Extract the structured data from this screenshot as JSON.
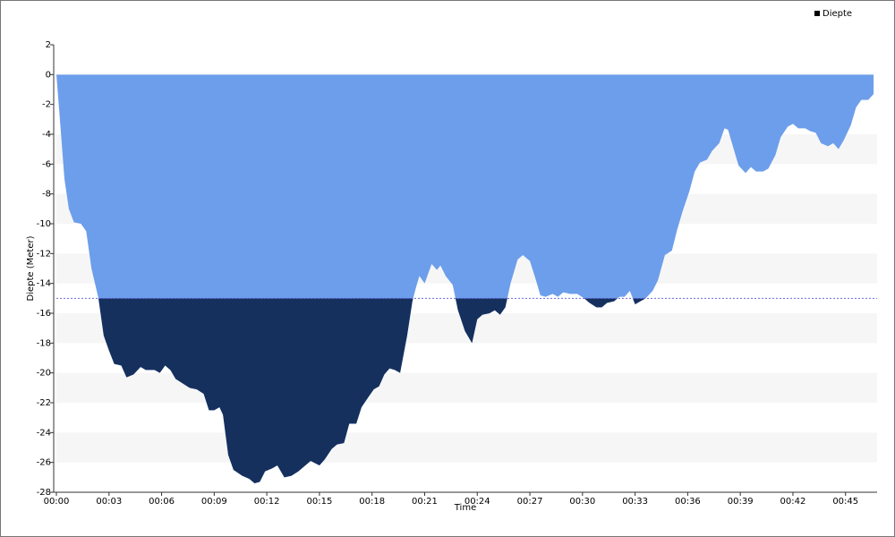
{
  "chart_data": {
    "type": "area",
    "x_label": "Time",
    "y_label": "Diepte (Meter)",
    "legend": "top-right",
    "reference_line": -15,
    "grid_bands": true,
    "xlim": [
      0,
      46.8
    ],
    "ylim": [
      -28,
      2
    ],
    "xticks": [
      {
        "value": 0,
        "label": "00:00"
      },
      {
        "value": 3,
        "label": "00:03"
      },
      {
        "value": 6,
        "label": "00:06"
      },
      {
        "value": 9,
        "label": "00:09"
      },
      {
        "value": 12,
        "label": "00:12"
      },
      {
        "value": 15,
        "label": "00:15"
      },
      {
        "value": 18,
        "label": "00:18"
      },
      {
        "value": 21,
        "label": "00:21"
      },
      {
        "value": 24,
        "label": "00:24"
      },
      {
        "value": 27,
        "label": "00:27"
      },
      {
        "value": 30,
        "label": "00:30"
      },
      {
        "value": 33,
        "label": "00:33"
      },
      {
        "value": 36,
        "label": "00:36"
      },
      {
        "value": 39,
        "label": "00:39"
      },
      {
        "value": 42,
        "label": "00:42"
      },
      {
        "value": 45,
        "label": "00:45"
      }
    ],
    "yticks": [
      2,
      0,
      -2,
      -4,
      -6,
      -8,
      -10,
      -12,
      -14,
      -16,
      -18,
      -20,
      -22,
      -24,
      -26,
      -28
    ],
    "x": [
      0,
      0.2,
      0.46,
      0.71,
      1.0,
      1.4,
      1.7,
      2.0,
      2.4,
      2.7,
      3.0,
      3.3,
      3.7,
      4.0,
      4.4,
      4.8,
      5.1,
      5.6,
      5.9,
      6.2,
      6.5,
      6.8,
      7.2,
      7.6,
      8.0,
      8.4,
      8.7,
      9.0,
      9.3,
      9.5,
      9.8,
      10.1,
      10.6,
      11.0,
      11.3,
      11.6,
      11.9,
      12.3,
      12.6,
      13.0,
      13.4,
      13.8,
      14.1,
      14.5,
      15.0,
      15.3,
      15.7,
      16.0,
      16.4,
      16.7,
      17.1,
      17.4,
      17.8,
      18.1,
      18.4,
      18.7,
      19.0,
      19.3,
      19.6,
      20.0,
      20.3,
      20.5,
      20.7,
      21.0,
      21.4,
      21.7,
      21.9,
      22.2,
      22.6,
      22.9,
      23.3,
      23.7,
      24.0,
      24.3,
      24.7,
      25.0,
      25.3,
      25.6,
      25.9,
      26.3,
      26.6,
      27.0,
      27.3,
      27.6,
      27.9,
      28.3,
      28.6,
      28.9,
      29.3,
      29.7,
      30.1,
      30.4,
      30.8,
      31.1,
      31.4,
      31.8,
      32.1,
      32.4,
      32.7,
      33.0,
      33.3,
      33.6,
      34.0,
      34.3,
      34.7,
      35.1,
      35.4,
      35.7,
      36.1,
      36.4,
      36.7,
      37.1,
      37.4,
      37.8,
      38.1,
      38.3,
      38.6,
      38.9,
      39.3,
      39.6,
      39.9,
      40.3,
      40.6,
      41.0,
      41.3,
      41.7,
      42.0,
      42.3,
      42.7,
      43.0,
      43.3,
      43.6,
      44.0,
      44.3,
      44.6,
      44.9,
      45.3,
      45.6,
      45.9,
      46.3,
      46.6
    ],
    "series": [
      {
        "name": "Diepte",
        "color": "#6d9eeb",
        "color_below": "#16305e",
        "values": [
          0,
          -3,
          -7,
          -9,
          -9.9,
          -10,
          -10.5,
          -13,
          -15,
          -17.5,
          -18.5,
          -19.4,
          -19.5,
          -20.3,
          -20.1,
          -19.6,
          -19.8,
          -19.8,
          -20,
          -19.5,
          -19.8,
          -20.4,
          -20.7,
          -21,
          -21.1,
          -21.4,
          -22.5,
          -22.5,
          -22.3,
          -22.8,
          -25.5,
          -26.5,
          -26.9,
          -27.1,
          -27.4,
          -27.3,
          -26.6,
          -26.4,
          -26.2,
          -27.0,
          -26.9,
          -26.6,
          -26.3,
          -25.9,
          -26.2,
          -25.8,
          -25.1,
          -24.8,
          -24.7,
          -23.4,
          -23.4,
          -22.3,
          -21.6,
          -21.1,
          -20.9,
          -20.1,
          -19.7,
          -19.8,
          -20.0,
          -17.5,
          -15.2,
          -14.3,
          -13.5,
          -14,
          -12.7,
          -13.1,
          -12.8,
          -13.5,
          -14.1,
          -15.8,
          -17.2,
          -18,
          -16.4,
          -16.1,
          -16.0,
          -15.8,
          -16.1,
          -15.6,
          -14.0,
          -12.4,
          -12.1,
          -12.5,
          -13.6,
          -14.8,
          -14.9,
          -14.7,
          -14.9,
          -14.6,
          -14.7,
          -14.7,
          -15.0,
          -15.3,
          -15.6,
          -15.6,
          -15.3,
          -15.2,
          -14.9,
          -14.9,
          -14.5,
          -15.4,
          -15.2,
          -15.0,
          -14.5,
          -13.8,
          -12.1,
          -11.8,
          -10.4,
          -9.2,
          -7.8,
          -6.5,
          -5.9,
          -5.7,
          -5.1,
          -4.6,
          -3.6,
          -3.7,
          -4.9,
          -6.1,
          -6.6,
          -6.2,
          -6.5,
          -6.5,
          -6.3,
          -5.4,
          -4.2,
          -3.5,
          -3.3,
          -3.6,
          -3.6,
          -3.8,
          -3.9,
          -4.6,
          -4.8,
          -4.6,
          -5.0,
          -4.4,
          -3.4,
          -2.2,
          -1.7,
          -1.7,
          -1.3
        ]
      }
    ]
  }
}
